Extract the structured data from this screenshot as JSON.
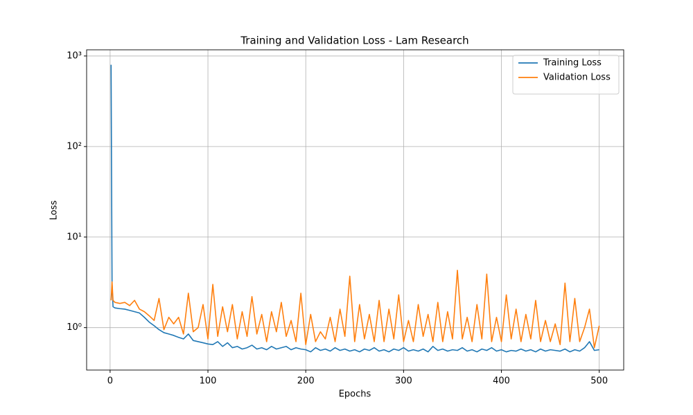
{
  "chart_data": {
    "type": "line",
    "title": "Training and Validation Loss - Lam Research",
    "xlabel": "Epochs",
    "ylabel": "Loss",
    "log_y": true,
    "grid": true,
    "legend": "upper right",
    "xlim": [
      -24,
      525
    ],
    "ylim": [
      0.34,
      1170
    ],
    "xticks": [
      0,
      100,
      200,
      300,
      400,
      500
    ],
    "yticks": [
      {
        "value": 1,
        "label": "10⁰"
      },
      {
        "value": 10,
        "label": "10¹"
      },
      {
        "value": 100,
        "label": "10²"
      },
      {
        "value": 1000,
        "label": "10³"
      }
    ],
    "x": [
      1,
      2,
      3,
      5,
      10,
      15,
      20,
      25,
      30,
      35,
      40,
      45,
      50,
      55,
      60,
      65,
      70,
      75,
      80,
      85,
      90,
      95,
      100,
      105,
      110,
      115,
      120,
      125,
      130,
      135,
      140,
      145,
      150,
      155,
      160,
      165,
      170,
      175,
      180,
      185,
      190,
      195,
      200,
      205,
      210,
      215,
      220,
      225,
      230,
      235,
      240,
      245,
      250,
      255,
      260,
      265,
      270,
      275,
      280,
      285,
      290,
      295,
      300,
      305,
      310,
      315,
      320,
      325,
      330,
      335,
      340,
      345,
      350,
      355,
      360,
      365,
      370,
      375,
      380,
      385,
      390,
      395,
      400,
      405,
      410,
      415,
      420,
      425,
      430,
      435,
      440,
      445,
      450,
      455,
      460,
      465,
      470,
      475,
      480,
      485,
      490,
      495,
      500
    ],
    "series": [
      {
        "name": "Training Loss",
        "color": "#1f77b4",
        "values": [
          800,
          3.0,
          1.7,
          1.65,
          1.62,
          1.6,
          1.55,
          1.5,
          1.45,
          1.3,
          1.15,
          1.05,
          0.95,
          0.88,
          0.85,
          0.82,
          0.78,
          0.75,
          0.85,
          0.72,
          0.7,
          0.68,
          0.66,
          0.65,
          0.7,
          0.62,
          0.68,
          0.6,
          0.62,
          0.58,
          0.6,
          0.64,
          0.58,
          0.6,
          0.57,
          0.62,
          0.58,
          0.6,
          0.62,
          0.57,
          0.6,
          0.58,
          0.57,
          0.54,
          0.6,
          0.56,
          0.58,
          0.55,
          0.6,
          0.56,
          0.58,
          0.55,
          0.57,
          0.54,
          0.58,
          0.56,
          0.6,
          0.55,
          0.57,
          0.54,
          0.58,
          0.56,
          0.6,
          0.55,
          0.57,
          0.55,
          0.58,
          0.54,
          0.62,
          0.56,
          0.58,
          0.55,
          0.57,
          0.56,
          0.6,
          0.55,
          0.57,
          0.54,
          0.58,
          0.56,
          0.6,
          0.55,
          0.57,
          0.54,
          0.56,
          0.55,
          0.58,
          0.55,
          0.57,
          0.54,
          0.58,
          0.55,
          0.57,
          0.56,
          0.55,
          0.58,
          0.54,
          0.57,
          0.55,
          0.6,
          0.7,
          0.56,
          0.57
        ]
      },
      {
        "name": "Validation Loss",
        "color": "#ff7f0e",
        "values": [
          2.0,
          3.2,
          2.0,
          1.9,
          1.85,
          1.9,
          1.75,
          2.0,
          1.6,
          1.5,
          1.35,
          1.2,
          2.1,
          0.95,
          1.3,
          1.1,
          1.3,
          0.85,
          2.4,
          0.9,
          1.0,
          1.8,
          0.75,
          3.0,
          0.8,
          1.7,
          0.9,
          1.8,
          0.75,
          1.5,
          0.8,
          2.2,
          0.85,
          1.4,
          0.7,
          1.5,
          0.9,
          1.9,
          0.8,
          1.2,
          0.7,
          2.4,
          0.65,
          1.4,
          0.7,
          0.9,
          0.75,
          1.3,
          0.7,
          1.6,
          0.8,
          3.7,
          0.7,
          1.8,
          0.75,
          1.4,
          0.7,
          2.0,
          0.7,
          1.6,
          0.75,
          2.3,
          0.7,
          1.2,
          0.7,
          1.8,
          0.8,
          1.4,
          0.7,
          1.9,
          0.7,
          1.5,
          0.75,
          4.3,
          0.75,
          1.3,
          0.7,
          1.8,
          0.75,
          3.9,
          0.7,
          1.3,
          0.7,
          2.3,
          0.75,
          1.6,
          0.7,
          1.4,
          0.75,
          2.0,
          0.7,
          1.2,
          0.7,
          1.1,
          0.65,
          3.1,
          0.7,
          2.1,
          0.7,
          1.0,
          1.6,
          0.6,
          1.05
        ]
      }
    ]
  }
}
